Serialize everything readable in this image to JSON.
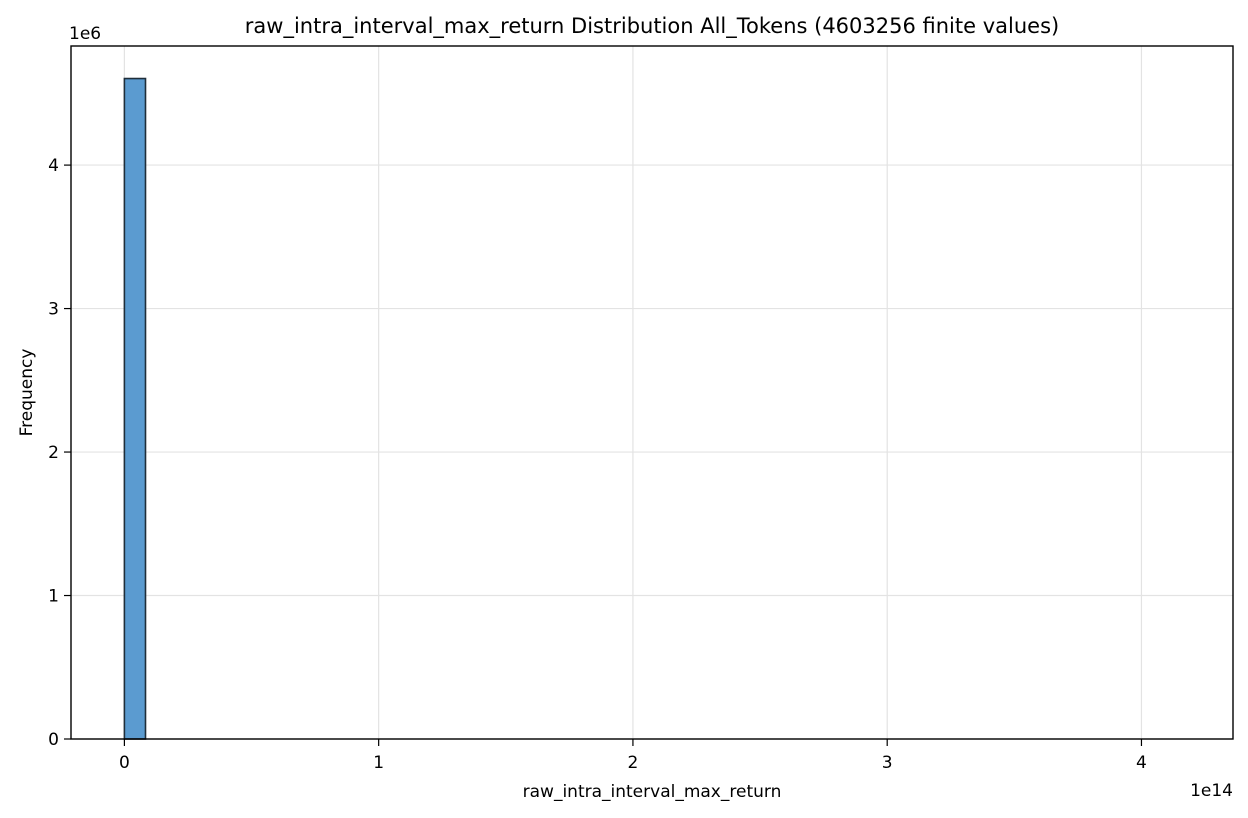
{
  "chart_data": {
    "type": "bar",
    "title": "raw_intra_interval_max_return Distribution All_Tokens (4603256 finite values)",
    "xlabel": "raw_intra_interval_max_return",
    "ylabel": "Frequency",
    "x_offset_label": "1e14",
    "y_offset_label": "1e6",
    "x_scale": 100000000000000.0,
    "y_scale": 1000000.0,
    "xlim": [
      -21000000000000.0,
      436000000000000.0
    ],
    "ylim": [
      0,
      4830000.0
    ],
    "x_ticks": [
      0,
      100000000000000.0,
      200000000000000.0,
      300000000000000.0,
      400000000000000.0
    ],
    "x_tick_labels": [
      "0",
      "1",
      "2",
      "3",
      "4"
    ],
    "y_ticks": [
      0,
      1000000.0,
      2000000.0,
      3000000.0,
      4000000.0
    ],
    "y_tick_labels": [
      "0",
      "1",
      "2",
      "3",
      "4"
    ],
    "grid": true,
    "bar_color": "#5b9bd0",
    "bar_edge_color": "#1f2e3a",
    "bins": [
      {
        "x0": 0,
        "x1": 8300000000000.0,
        "count": 4603256
      }
    ]
  }
}
